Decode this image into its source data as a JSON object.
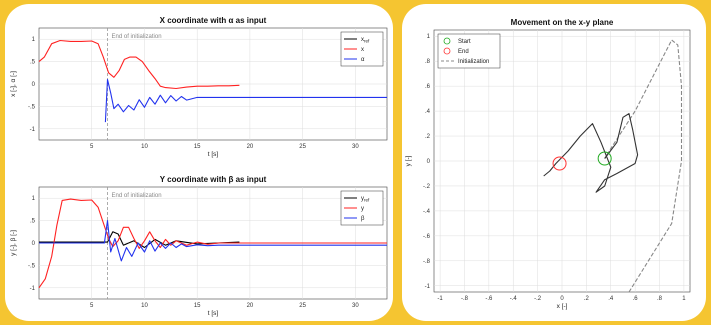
{
  "chart_data": [
    {
      "type": "line",
      "title": "X coordinate with α as input",
      "xlabel": "t [s]",
      "ylabel": "x [-], α [-]",
      "xlim": [
        0,
        33
      ],
      "ylim": [
        -1.25,
        1.25
      ],
      "xticks": [
        5,
        10,
        15,
        20,
        25,
        30
      ],
      "yticks": [
        -1,
        -0.5,
        0,
        0.5,
        1
      ],
      "grid": true,
      "annotation": {
        "text": "End of initialization",
        "x": 6.5
      },
      "legend": {
        "position": "top-right",
        "items": [
          "x_ref",
          "x",
          "α"
        ]
      },
      "series": [
        {
          "name": "x_ref",
          "color": "#000000",
          "points": []
        },
        {
          "name": "x",
          "color": "#ff2222",
          "points": [
            [
              0,
              0.5
            ],
            [
              0.5,
              0.6
            ],
            [
              1.2,
              0.9
            ],
            [
              2,
              0.97
            ],
            [
              3,
              0.95
            ],
            [
              4,
              0.95
            ],
            [
              5,
              0.96
            ],
            [
              5.6,
              0.9
            ],
            [
              6.1,
              0.6
            ],
            [
              6.6,
              0.25
            ],
            [
              7.1,
              0.15
            ],
            [
              7.6,
              0.3
            ],
            [
              8.1,
              0.55
            ],
            [
              8.6,
              0.6
            ],
            [
              9.2,
              0.6
            ],
            [
              9.8,
              0.5
            ],
            [
              10.4,
              0.3
            ],
            [
              11,
              0.12
            ],
            [
              11.5,
              -0.05
            ],
            [
              12,
              -0.08
            ],
            [
              13,
              -0.1
            ],
            [
              14,
              -0.07
            ],
            [
              15,
              -0.05
            ],
            [
              16,
              -0.05
            ],
            [
              17,
              -0.04
            ],
            [
              18,
              -0.04
            ],
            [
              19,
              -0.03
            ]
          ]
        },
        {
          "name": "α",
          "color": "#2233ee",
          "points": [
            [
              6.3,
              -0.85
            ],
            [
              6.5,
              0.1
            ],
            [
              6.8,
              -0.2
            ],
            [
              7.1,
              -0.55
            ],
            [
              7.5,
              -0.45
            ],
            [
              8,
              -0.62
            ],
            [
              8.5,
              -0.48
            ],
            [
              9,
              -0.58
            ],
            [
              9.5,
              -0.35
            ],
            [
              10,
              -0.52
            ],
            [
              10.5,
              -0.3
            ],
            [
              11,
              -0.45
            ],
            [
              11.5,
              -0.25
            ],
            [
              12,
              -0.42
            ],
            [
              12.5,
              -0.26
            ],
            [
              13,
              -0.38
            ],
            [
              13.5,
              -0.28
            ],
            [
              14,
              -0.36
            ],
            [
              15,
              -0.3
            ],
            [
              16,
              -0.3
            ],
            [
              33,
              -0.3
            ]
          ]
        }
      ]
    },
    {
      "type": "line",
      "title": "Y coordinate with β as input",
      "xlabel": "t [s]",
      "ylabel": "y [-], β [-]",
      "xlim": [
        0,
        33
      ],
      "ylim": [
        -1.25,
        1.25
      ],
      "xticks": [
        5,
        10,
        15,
        20,
        25,
        30
      ],
      "yticks": [
        -1,
        -0.5,
        0,
        0.5,
        1
      ],
      "grid": true,
      "annotation": {
        "text": "End of initialization",
        "x": 6.5
      },
      "legend": {
        "position": "top-right",
        "items": [
          "y_ref",
          "y",
          "β"
        ]
      },
      "series": [
        {
          "name": "y_ref",
          "color": "#000000",
          "points": [
            [
              0,
              0.02
            ],
            [
              6.5,
              0.02
            ],
            [
              7,
              0.25
            ],
            [
              7.5,
              0.2
            ],
            [
              8,
              -0.05
            ],
            [
              9,
              0.05
            ],
            [
              10,
              -0.1
            ],
            [
              11,
              0.08
            ],
            [
              12,
              -0.05
            ],
            [
              13,
              0.05
            ],
            [
              15,
              -0.02
            ],
            [
              19,
              0.02
            ]
          ]
        },
        {
          "name": "y",
          "color": "#ff2222",
          "points": [
            [
              0,
              -1.0
            ],
            [
              0.6,
              -0.8
            ],
            [
              1.2,
              -0.3
            ],
            [
              1.7,
              0.4
            ],
            [
              2.2,
              0.95
            ],
            [
              3,
              0.98
            ],
            [
              4,
              0.95
            ],
            [
              5,
              0.96
            ],
            [
              5.6,
              0.8
            ],
            [
              6.1,
              0.45
            ],
            [
              6.6,
              0.1
            ],
            [
              7,
              -0.08
            ],
            [
              7.5,
              0.05
            ],
            [
              8,
              0.35
            ],
            [
              8.5,
              0.35
            ],
            [
              9,
              0.1
            ],
            [
              9.5,
              -0.12
            ],
            [
              10,
              0.05
            ],
            [
              10.5,
              0.25
            ],
            [
              11,
              0.05
            ],
            [
              11.5,
              -0.1
            ],
            [
              12,
              0.08
            ],
            [
              12.5,
              -0.05
            ],
            [
              13,
              0.05
            ],
            [
              14,
              -0.05
            ],
            [
              15,
              0.02
            ],
            [
              16,
              -0.03
            ],
            [
              17,
              0.0
            ],
            [
              33,
              0.0
            ]
          ]
        },
        {
          "name": "β",
          "color": "#2233ee",
          "points": [
            [
              0,
              0.0
            ],
            [
              6.2,
              0.0
            ],
            [
              6.5,
              0.5
            ],
            [
              6.8,
              -0.2
            ],
            [
              7.2,
              0.1
            ],
            [
              7.8,
              -0.4
            ],
            [
              8.3,
              -0.1
            ],
            [
              8.8,
              -0.3
            ],
            [
              9.4,
              0.0
            ],
            [
              10,
              -0.2
            ],
            [
              10.5,
              0.05
            ],
            [
              11,
              -0.18
            ],
            [
              11.5,
              0.0
            ],
            [
              12,
              -0.12
            ],
            [
              12.5,
              0.0
            ],
            [
              13,
              -0.1
            ],
            [
              13.5,
              -0.02
            ],
            [
              14,
              -0.08
            ],
            [
              15,
              -0.04
            ],
            [
              16,
              -0.06
            ],
            [
              17,
              -0.05
            ],
            [
              18,
              -0.05
            ],
            [
              33,
              -0.05
            ]
          ]
        }
      ]
    },
    {
      "type": "line",
      "title": "Movement on the x-y plane",
      "xlabel": "x [-]",
      "ylabel": "y [-]",
      "xlim": [
        -1.05,
        1.05
      ],
      "ylim": [
        -1.05,
        1.05
      ],
      "xticks": [
        -1,
        -0.8,
        -0.6,
        -0.4,
        -0.2,
        0,
        0.2,
        0.4,
        0.6,
        0.8,
        1
      ],
      "yticks": [
        -1,
        -0.8,
        -0.6,
        -0.4,
        -0.2,
        0,
        0.2,
        0.4,
        0.6,
        0.8,
        1
      ],
      "grid": true,
      "legend": {
        "position": "top-left",
        "items": [
          "Start",
          "End",
          "Initialization"
        ]
      },
      "markers": [
        {
          "name": "Start",
          "color": "#22aa22",
          "x": 0.35,
          "y": 0.02
        },
        {
          "name": "End",
          "color": "#ff3333",
          "x": -0.02,
          "y": -0.02
        }
      ],
      "series": [
        {
          "name": "Initialization",
          "color": "#888888",
          "dashed": true,
          "points": [
            [
              0.55,
              -1.05
            ],
            [
              0.9,
              -0.5
            ],
            [
              0.98,
              0.0
            ],
            [
              0.98,
              0.6
            ],
            [
              0.95,
              0.93
            ],
            [
              0.9,
              0.97
            ],
            [
              0.6,
              0.4
            ],
            [
              0.4,
              0.1
            ],
            [
              0.35,
              0.02
            ]
          ]
        },
        {
          "name": "trajectory",
          "color": "#333333",
          "points": [
            [
              0.35,
              0.02
            ],
            [
              0.45,
              0.15
            ],
            [
              0.5,
              0.35
            ],
            [
              0.55,
              0.38
            ],
            [
              0.58,
              0.25
            ],
            [
              0.62,
              0.05
            ],
            [
              0.6,
              -0.02
            ],
            [
              0.45,
              -0.1
            ],
            [
              0.35,
              -0.15
            ],
            [
              0.28,
              -0.25
            ],
            [
              0.35,
              -0.2
            ],
            [
              0.4,
              -0.05
            ],
            [
              0.32,
              0.15
            ],
            [
              0.25,
              0.3
            ],
            [
              0.15,
              0.2
            ],
            [
              0.05,
              0.08
            ],
            [
              -0.05,
              -0.02
            ],
            [
              -0.1,
              -0.08
            ],
            [
              -0.15,
              -0.12
            ]
          ]
        }
      ]
    }
  ]
}
